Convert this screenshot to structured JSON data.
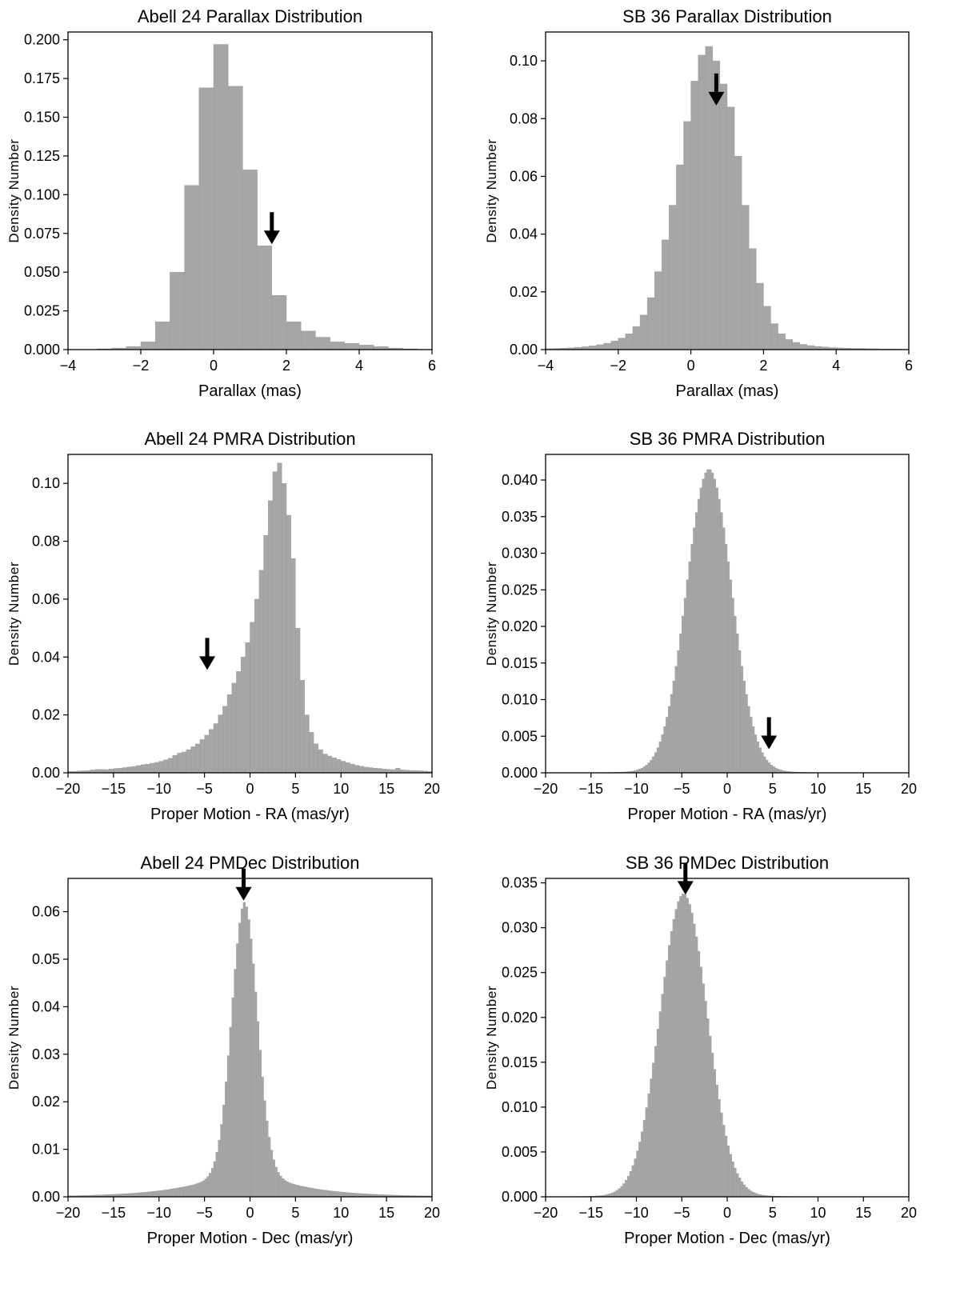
{
  "chart_data": [
    {
      "type": "bar",
      "title": "Abell 24 Parallax Distribution",
      "xlabel": "Parallax (mas)",
      "ylabel": "Density Number",
      "xlim": [
        -4,
        6
      ],
      "ylim": [
        0,
        0.205
      ],
      "xticks": [
        "−4",
        "−2",
        "0",
        "2",
        "4",
        "6"
      ],
      "xtick_values": [
        -4,
        -2,
        0,
        2,
        4,
        6
      ],
      "yticks": [
        "0.000",
        "0.025",
        "0.050",
        "0.075",
        "0.100",
        "0.125",
        "0.150",
        "0.175",
        "0.200"
      ],
      "ytick_values": [
        0,
        0.025,
        0.05,
        0.075,
        0.1,
        0.125,
        0.15,
        0.175,
        0.2
      ],
      "bin_start": -4.0,
      "bin_width": 0.4,
      "values": [
        0.0,
        0.0,
        0.0005,
        0.001,
        0.002,
        0.005,
        0.018,
        0.05,
        0.106,
        0.169,
        0.197,
        0.17,
        0.116,
        0.067,
        0.035,
        0.018,
        0.012,
        0.008,
        0.005,
        0.004,
        0.003,
        0.002,
        0.001,
        0.0005,
        0.0
      ],
      "arrow_x": 1.6,
      "arrow_y": 0.067
    },
    {
      "type": "bar",
      "title": "SB 36 Parallax Distribution",
      "xlabel": "Parallax (mas)",
      "ylabel": "Density Number",
      "xlim": [
        -4,
        6
      ],
      "ylim": [
        0,
        0.11
      ],
      "xticks": [
        "−4",
        "−2",
        "0",
        "2",
        "4",
        "6"
      ],
      "xtick_values": [
        -4,
        -2,
        0,
        2,
        4,
        6
      ],
      "yticks": [
        "0.00",
        "0.02",
        "0.04",
        "0.06",
        "0.08",
        "0.10"
      ],
      "ytick_values": [
        0,
        0.02,
        0.04,
        0.06,
        0.08,
        0.1
      ],
      "bin_start": -4.0,
      "bin_width": 0.2,
      "values": [
        0.0003,
        0.0004,
        0.0005,
        0.0006,
        0.0008,
        0.001,
        0.0013,
        0.0017,
        0.0022,
        0.003,
        0.004,
        0.0055,
        0.008,
        0.012,
        0.018,
        0.027,
        0.038,
        0.05,
        0.064,
        0.079,
        0.093,
        0.102,
        0.105,
        0.1,
        0.092,
        0.084,
        0.067,
        0.05,
        0.035,
        0.023,
        0.015,
        0.009,
        0.0055,
        0.0035,
        0.0025,
        0.0018,
        0.0014,
        0.0011,
        0.0009,
        0.0007,
        0.0006,
        0.0005,
        0.0004,
        0.0004,
        0.0003,
        0.0003,
        0.0002,
        0.0002,
        0.0002,
        0.0001
      ],
      "arrow_x": 0.7,
      "arrow_y": 0.084
    },
    {
      "type": "bar",
      "title": "Abell 24 PMRA Distribution",
      "xlabel": "Proper Motion - RA (mas/yr)",
      "ylabel": "Density Number",
      "xlim": [
        -20,
        20
      ],
      "ylim": [
        0,
        0.11
      ],
      "xticks": [
        "−20",
        "−15",
        "−10",
        "−5",
        "0",
        "5",
        "10",
        "15",
        "20"
      ],
      "xtick_values": [
        -20,
        -15,
        -10,
        -5,
        0,
        5,
        10,
        15,
        20
      ],
      "yticks": [
        "0.00",
        "0.02",
        "0.04",
        "0.06",
        "0.08",
        "0.10"
      ],
      "ytick_values": [
        0,
        0.02,
        0.04,
        0.06,
        0.08,
        0.1
      ],
      "bin_start": -20.0,
      "bin_width": 0.5,
      "values": [
        0.0005,
        0.0005,
        0.0006,
        0.0007,
        0.0008,
        0.001,
        0.0012,
        0.0012,
        0.0011,
        0.0013,
        0.0015,
        0.0016,
        0.0018,
        0.002,
        0.0022,
        0.0025,
        0.0028,
        0.003,
        0.0033,
        0.0036,
        0.004,
        0.0045,
        0.005,
        0.006,
        0.0068,
        0.0072,
        0.008,
        0.009,
        0.01,
        0.0115,
        0.013,
        0.015,
        0.017,
        0.02,
        0.023,
        0.027,
        0.031,
        0.035,
        0.04,
        0.045,
        0.052,
        0.06,
        0.07,
        0.082,
        0.094,
        0.104,
        0.107,
        0.1,
        0.089,
        0.074,
        0.05,
        0.032,
        0.02,
        0.014,
        0.01,
        0.008,
        0.0065,
        0.0058,
        0.0052,
        0.0046,
        0.004,
        0.0035,
        0.003,
        0.0026,
        0.0023,
        0.002,
        0.0018,
        0.0016,
        0.0015,
        0.0013,
        0.0012,
        0.0011,
        0.0016,
        0.001,
        0.0009,
        0.0008,
        0.0008,
        0.0007,
        0.0006,
        0.0005
      ],
      "arrow_x": -4.7,
      "arrow_y": 0.035
    },
    {
      "type": "bar",
      "title": "SB 36 PMRA Distribution",
      "xlabel": "Proper Motion - RA (mas/yr)",
      "ylabel": "Density Number",
      "xlim": [
        -20,
        20
      ],
      "ylim": [
        0,
        0.0435
      ],
      "xticks": [
        "−20",
        "−15",
        "−10",
        "−5",
        "0",
        "5",
        "10",
        "15",
        "20"
      ],
      "xtick_values": [
        -20,
        -15,
        -10,
        -5,
        0,
        5,
        10,
        15,
        20
      ],
      "yticks": [
        "0.000",
        "0.005",
        "0.010",
        "0.015",
        "0.020",
        "0.025",
        "0.030",
        "0.035",
        "0.040"
      ],
      "ytick_values": [
        0,
        0.005,
        0.01,
        0.015,
        0.02,
        0.025,
        0.03,
        0.035,
        0.04
      ],
      "peak_x": -2.0,
      "peak_y": 0.0415,
      "sigma": 2.5,
      "tail_amp": 0.0008,
      "tail_scale": 4.0,
      "bin_width": 0.25,
      "arrow_x": 4.6,
      "arrow_y": 0.003
    },
    {
      "type": "bar",
      "title": "Abell 24 PMDec Distribution",
      "xlabel": "Proper Motion - Dec (mas/yr)",
      "ylabel": "Density Number",
      "xlim": [
        -20,
        20
      ],
      "ylim": [
        0,
        0.067
      ],
      "xticks": [
        "−20",
        "−15",
        "−10",
        "−5",
        "0",
        "5",
        "10",
        "15",
        "20"
      ],
      "xtick_values": [
        -20,
        -15,
        -10,
        -5,
        0,
        5,
        10,
        15,
        20
      ],
      "yticks": [
        "0.00",
        "0.01",
        "0.02",
        "0.03",
        "0.04",
        "0.05",
        "0.06"
      ],
      "ytick_values": [
        0,
        0.01,
        0.02,
        0.03,
        0.04,
        0.05,
        0.06
      ],
      "peak_x": -0.6,
      "peak_y": 0.062,
      "sigma": 1.4,
      "tail_amp": 0.007,
      "tail_scale": 5.5,
      "bin_width": 0.25,
      "arrow_x": -0.7,
      "arrow_y": 0.062
    },
    {
      "type": "bar",
      "title": "SB 36 PMDec Distribution",
      "xlabel": "Proper Motion - Dec (mas/yr)",
      "ylabel": "Density Number",
      "xlim": [
        -20,
        20
      ],
      "ylim": [
        0,
        0.0355
      ],
      "xticks": [
        "−20",
        "−15",
        "−10",
        "−5",
        "0",
        "5",
        "10",
        "15",
        "20"
      ],
      "xtick_values": [
        -20,
        -15,
        -10,
        -5,
        0,
        5,
        10,
        15,
        20
      ],
      "yticks": [
        "0.000",
        "0.005",
        "0.010",
        "0.015",
        "0.020",
        "0.025",
        "0.030",
        "0.035"
      ],
      "ytick_values": [
        0,
        0.005,
        0.01,
        0.015,
        0.02,
        0.025,
        0.03,
        0.035
      ],
      "peak_x": -4.8,
      "peak_y": 0.0338,
      "sigma": 2.6,
      "tail_amp": 0.0006,
      "tail_scale": 4.0,
      "bin_width": 0.25,
      "arrow_x": -4.6,
      "arrow_y": 0.0335
    }
  ]
}
